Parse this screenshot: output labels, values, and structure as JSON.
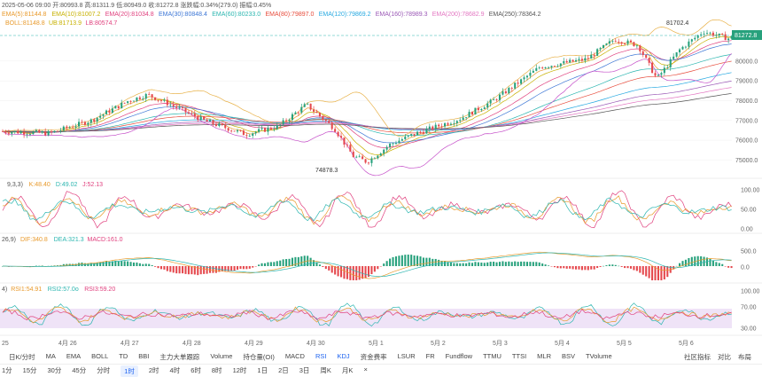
{
  "header": {
    "line1": "2025-05-06 09:00   开:80993.8   高:81311.9   低:80949.0   收:81272.8   涨跌幅:0.34%(279.0)   振幅:0.45%",
    "ema_items": [
      {
        "text": "EMA(5):81144.8",
        "color": "#e89a2c"
      },
      {
        "text": "EMA(10):81007.2",
        "color": "#c7b100"
      },
      {
        "text": "EMA(20):81034.8",
        "color": "#e0407e"
      },
      {
        "text": "EMA(30):80848.4",
        "color": "#3d77d6"
      },
      {
        "text": "EMA(60):80233.0",
        "color": "#2cb6b0"
      },
      {
        "text": "EMA(80):79897.0",
        "color": "#e74c3c"
      },
      {
        "text": "EMA(120):79869.2",
        "color": "#27a9e1"
      },
      {
        "text": "EMA(160):78989.3",
        "color": "#9b59b6"
      },
      {
        "text": "EMA(200):78682.9",
        "color": "#e377c2"
      },
      {
        "text": "EMA(250):78364.2",
        "color": "#555555"
      }
    ],
    "boll_items": [
      {
        "text": "BOLL:81148.8",
        "color": "#e89a2c"
      },
      {
        "text": "UB:81713.9",
        "color": "#c7b100"
      },
      {
        "text": "LB:80574.7",
        "color": "#e0407e"
      }
    ]
  },
  "kdj_label": {
    "prefix": "9,3,3)",
    "items": [
      {
        "text": "K:48.40",
        "color": "#e89a2c"
      },
      {
        "text": "D:49.02",
        "color": "#2cb6b0"
      },
      {
        "text": "J:52.13",
        "color": "#e0407e"
      }
    ]
  },
  "macd_label": {
    "prefix": "26,9)",
    "items": [
      {
        "text": "DIF:340.8",
        "color": "#e89a2c"
      },
      {
        "text": "DEA:321.3",
        "color": "#2cb6b0"
      },
      {
        "text": "MACD:161.0",
        "color": "#e0407e"
      }
    ]
  },
  "rsi_label": {
    "prefix": "4)",
    "items": [
      {
        "text": "RSI1:54.91",
        "color": "#e89a2c"
      },
      {
        "text": "RSI2:57.0o",
        "color": "#2cb6b0"
      },
      {
        "text": "RSI3:59.20",
        "color": "#e0407e"
      }
    ]
  },
  "price_tag": "81272.8",
  "annotations": {
    "high": "81702.4",
    "low": "74878.3"
  },
  "chart_data": {
    "type": "candlestick",
    "x_ticks": [
      "25",
      "4月 26",
      "4月 27",
      "4月 28",
      "4月 29",
      "4月 30",
      "5月 1",
      "5月 2",
      "5月 3",
      "5月 4",
      "5月 5",
      "5月 6"
    ],
    "price_axis": {
      "ticks": [
        75000,
        76000,
        77000,
        78000,
        79000,
        80000
      ],
      "tick_labels": [
        "75000.0",
        "76000.0",
        "77000.0",
        "78000.0",
        "79000.0",
        "80000.0"
      ],
      "current": 81272.8,
      "high": 81702.4,
      "low": 74878.3
    },
    "kdj_axis": {
      "ticks": [
        0,
        50,
        100
      ],
      "tick_labels": [
        "0.00",
        "50.00",
        "100.00"
      ]
    },
    "macd_axis": {
      "ticks": [
        0,
        500
      ],
      "tick_labels": [
        "0.0",
        "500.0"
      ]
    },
    "rsi_axis": {
      "ticks": [
        30,
        70,
        100
      ],
      "tick_labels": [
        "30.00",
        "70.00",
        "100.00"
      ]
    },
    "indicators": {
      "KDJ": {
        "K": 48.4,
        "D": 49.02,
        "J": 52.13
      },
      "MACD": {
        "DIF": 340.8,
        "DEA": 321.3,
        "MACD": 161.0
      },
      "RSI": {
        "RSI1": 54.91,
        "RSI2": 57.0,
        "RSI3": 59.2
      }
    },
    "colors": {
      "up": "#27a17c",
      "down": "#e5484d"
    }
  },
  "toolbar1": {
    "left": [
      "日K/分时",
      "MA",
      "EMA",
      "BOLL",
      "TD",
      "BBI",
      "主力大单跟踪",
      "Volume",
      "持仓量(OI)",
      "MACD",
      "RSI",
      "KDJ",
      "资金费率",
      "LSUR",
      "FR",
      "Fundflow",
      "TTMU",
      "TTSI",
      "MLR",
      "BSV",
      "TVolume"
    ],
    "active": [
      "RSI",
      "KDJ"
    ],
    "right": [
      "社区指标",
      "对比",
      "布局"
    ]
  },
  "toolbar2": {
    "items": [
      "1分",
      "15分",
      "30分",
      "45分",
      "分时",
      "1时",
      "2时",
      "4时",
      "6时",
      "8时",
      "12时",
      "1日",
      "2日",
      "3日",
      "周K",
      "月K",
      "×"
    ],
    "active": "1时"
  }
}
